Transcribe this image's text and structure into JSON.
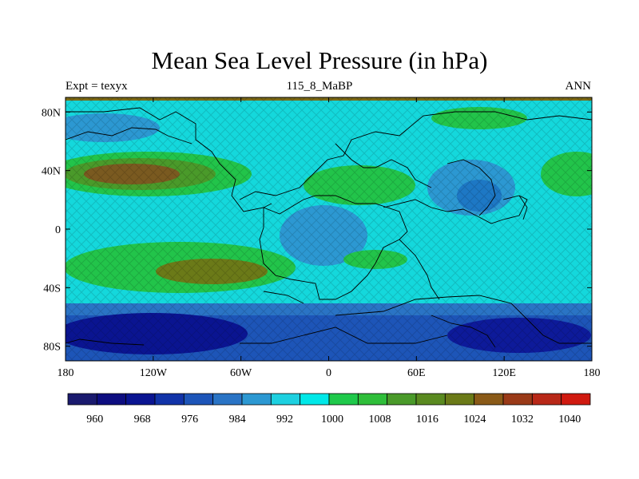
{
  "title": "Mean Sea Level Pressure (in hPa)",
  "subtitle_left": "Expt = texyx",
  "subtitle_center": "115_8_MaBP",
  "subtitle_right": "ANN",
  "map": {
    "lon_range": [
      -180,
      180
    ],
    "lat_range": [
      -90,
      90
    ],
    "lon_ticks": [
      {
        "value": -180,
        "label": "180"
      },
      {
        "value": -120,
        "label": "120W"
      },
      {
        "value": -60,
        "label": "60W"
      },
      {
        "value": 0,
        "label": "0"
      },
      {
        "value": 60,
        "label": "60E"
      },
      {
        "value": 120,
        "label": "120E"
      },
      {
        "value": 180,
        "label": "180"
      }
    ],
    "lat_ticks": [
      {
        "value": 80,
        "label": "80N"
      },
      {
        "value": 40,
        "label": "40N"
      },
      {
        "value": 0,
        "label": "0"
      },
      {
        "value": -40,
        "label": "40S"
      },
      {
        "value": -80,
        "label": "80S"
      }
    ]
  },
  "colorbar": {
    "colors": [
      "#1a1a6e",
      "#0d0d80",
      "#0a1491",
      "#1133a8",
      "#1d55b8",
      "#2a74c5",
      "#2c98d2",
      "#1dd0e0",
      "#00e8e8",
      "#1fc94b",
      "#2fbe3a",
      "#4a9a2a",
      "#5a8a20",
      "#6b7a18",
      "#8a5a18",
      "#9a3a18",
      "#b82818",
      "#d01a10"
    ],
    "labels": [
      {
        "index": 1,
        "text": "960"
      },
      {
        "index": 3,
        "text": "968"
      },
      {
        "index": 5,
        "text": "976"
      },
      {
        "index": 7,
        "text": "984"
      },
      {
        "index": 9,
        "text": "992"
      },
      {
        "index": 11,
        "text": "1000"
      },
      {
        "index": 13,
        "text": "1008"
      },
      {
        "index": 15,
        "text": "1016"
      },
      {
        "index": 17,
        "text": "1024"
      },
      {
        "index": 19,
        "text": "1032"
      },
      {
        "index": 21,
        "text": "1040"
      }
    ]
  }
}
